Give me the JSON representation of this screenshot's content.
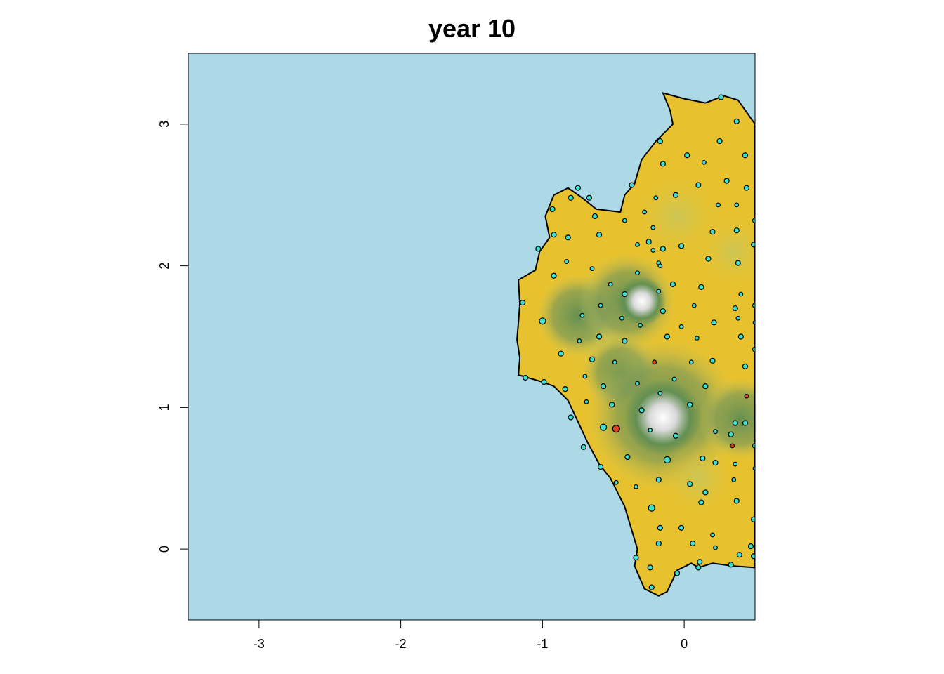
{
  "title": "year 10",
  "colors": {
    "sea": "#add8e6",
    "lowland": "#e8c22e",
    "midland": "#c9c65a",
    "forest": "#5f8e52",
    "peak": "#d9d9d9",
    "summit": "#ffffff",
    "point_fill": "#40e0d0",
    "point_fill_alt": "#e04020",
    "outline": "#000000"
  },
  "chart_data": {
    "type": "scatter",
    "title": "year 10",
    "xlabel": "",
    "ylabel": "",
    "xlim": [
      -3.5,
      0.5
    ],
    "ylim": [
      -0.5,
      3.5
    ],
    "x_ticks": [
      -3,
      -2,
      -1,
      0
    ],
    "y_ticks": [
      0,
      1,
      2,
      3
    ],
    "x_tick_labels": [
      "-3",
      "-2",
      "-1",
      "0"
    ],
    "y_tick_labels": [
      "0",
      "1",
      "2",
      "3"
    ],
    "island_outline": [
      [
        -0.15,
        3.22
      ],
      [
        0.0,
        3.18
      ],
      [
        0.15,
        3.15
      ],
      [
        0.28,
        3.2
      ],
      [
        0.38,
        3.17
      ],
      [
        0.5,
        3.0
      ],
      [
        0.5,
        -0.13
      ],
      [
        0.35,
        -0.12
      ],
      [
        0.2,
        -0.1
      ],
      [
        0.1,
        -0.13
      ],
      [
        0.05,
        -0.1
      ],
      [
        -0.05,
        -0.15
      ],
      [
        -0.12,
        -0.3
      ],
      [
        -0.18,
        -0.33
      ],
      [
        -0.28,
        -0.28
      ],
      [
        -0.35,
        -0.12
      ],
      [
        -0.33,
        0.0
      ],
      [
        -0.42,
        0.3
      ],
      [
        -0.52,
        0.5
      ],
      [
        -0.6,
        0.6
      ],
      [
        -0.68,
        0.75
      ],
      [
        -0.75,
        0.9
      ],
      [
        -0.82,
        1.05
      ],
      [
        -0.92,
        1.15
      ],
      [
        -1.0,
        1.18
      ],
      [
        -1.17,
        1.23
      ],
      [
        -1.16,
        1.35
      ],
      [
        -1.18,
        1.48
      ],
      [
        -1.17,
        1.6
      ],
      [
        -1.16,
        1.73
      ],
      [
        -1.17,
        1.9
      ],
      [
        -1.05,
        1.97
      ],
      [
        -1.02,
        2.1
      ],
      [
        -0.95,
        2.2
      ],
      [
        -0.98,
        2.35
      ],
      [
        -0.92,
        2.5
      ],
      [
        -0.82,
        2.55
      ],
      [
        -0.72,
        2.48
      ],
      [
        -0.62,
        2.4
      ],
      [
        -0.45,
        2.38
      ],
      [
        -0.42,
        2.5
      ],
      [
        -0.35,
        2.58
      ],
      [
        -0.3,
        2.75
      ],
      [
        -0.2,
        2.88
      ],
      [
        -0.08,
        3.0
      ],
      [
        -0.1,
        3.1
      ]
    ],
    "points": [
      {
        "x": 0.26,
        "y": 3.19,
        "size": 3.5,
        "color": "cyan"
      },
      {
        "x": 0.37,
        "y": 3.02,
        "size": 3.5,
        "color": "cyan"
      },
      {
        "x": 0.25,
        "y": 2.88,
        "size": 3.5,
        "color": "cyan"
      },
      {
        "x": 0.43,
        "y": 2.78,
        "size": 3.5,
        "color": "cyan"
      },
      {
        "x": 0.14,
        "y": 2.73,
        "size": 2.8,
        "color": "cyan"
      },
      {
        "x": 0.02,
        "y": 2.78,
        "size": 3.5,
        "color": "cyan"
      },
      {
        "x": -0.17,
        "y": 2.88,
        "size": 3.5,
        "color": "cyan"
      },
      {
        "x": -0.15,
        "y": 2.72,
        "size": 3.5,
        "color": "cyan"
      },
      {
        "x": -0.37,
        "y": 2.57,
        "size": 3.5,
        "color": "cyan"
      },
      {
        "x": -0.06,
        "y": 2.5,
        "size": 3.5,
        "color": "cyan"
      },
      {
        "x": 0.1,
        "y": 2.57,
        "size": 3.5,
        "color": "cyan"
      },
      {
        "x": 0.3,
        "y": 2.6,
        "size": 3.5,
        "color": "cyan"
      },
      {
        "x": 0.44,
        "y": 2.55,
        "size": 3.5,
        "color": "cyan"
      },
      {
        "x": -0.2,
        "y": 2.48,
        "size": 2.8,
        "color": "cyan"
      },
      {
        "x": 0.24,
        "y": 2.43,
        "size": 2.8,
        "color": "cyan"
      },
      {
        "x": 0.37,
        "y": 2.43,
        "size": 2.8,
        "color": "cyan"
      },
      {
        "x": 0.5,
        "y": 2.32,
        "size": 3.5,
        "color": "cyan"
      },
      {
        "x": 0.37,
        "y": 2.25,
        "size": 3.5,
        "color": "cyan"
      },
      {
        "x": 0.2,
        "y": 2.24,
        "size": 3.5,
        "color": "cyan"
      },
      {
        "x": -0.28,
        "y": 2.38,
        "size": 2.8,
        "color": "cyan"
      },
      {
        "x": -0.22,
        "y": 2.27,
        "size": 2.8,
        "color": "cyan"
      },
      {
        "x": -0.42,
        "y": 2.32,
        "size": 2.8,
        "color": "cyan"
      },
      {
        "x": -0.15,
        "y": 2.12,
        "size": 3.5,
        "color": "cyan"
      },
      {
        "x": -0.02,
        "y": 2.14,
        "size": 3.5,
        "color": "cyan"
      },
      {
        "x": -0.22,
        "y": 2.11,
        "size": 2.8,
        "color": "cyan"
      },
      {
        "x": 0.49,
        "y": 2.15,
        "size": 3.5,
        "color": "cyan"
      },
      {
        "x": -0.18,
        "y": 2.02,
        "size": 2.8,
        "color": "cyan"
      },
      {
        "x": 0.17,
        "y": 2.05,
        "size": 3.5,
        "color": "cyan"
      },
      {
        "x": 0.38,
        "y": 2.02,
        "size": 3.5,
        "color": "cyan"
      },
      {
        "x": -0.17,
        "y": 2.0,
        "size": 2.8,
        "color": "cyan"
      },
      {
        "x": -0.67,
        "y": 2.48,
        "size": 3.5,
        "color": "cyan"
      },
      {
        "x": -0.8,
        "y": 2.48,
        "size": 3.5,
        "color": "cyan"
      },
      {
        "x": -0.75,
        "y": 2.55,
        "size": 3.5,
        "color": "cyan"
      },
      {
        "x": -0.93,
        "y": 2.4,
        "size": 3.5,
        "color": "cyan"
      },
      {
        "x": -0.63,
        "y": 2.35,
        "size": 3.5,
        "color": "cyan"
      },
      {
        "x": -0.92,
        "y": 2.22,
        "size": 3.5,
        "color": "cyan"
      },
      {
        "x": -1.03,
        "y": 2.12,
        "size": 3.5,
        "color": "cyan"
      },
      {
        "x": -0.6,
        "y": 2.22,
        "size": 3.5,
        "color": "cyan"
      },
      {
        "x": -0.82,
        "y": 2.2,
        "size": 3.5,
        "color": "cyan"
      },
      {
        "x": -0.25,
        "y": 2.17,
        "size": 3.5,
        "color": "cyan"
      },
      {
        "x": -0.33,
        "y": 2.15,
        "size": 2.8,
        "color": "cyan"
      },
      {
        "x": -0.83,
        "y": 2.03,
        "size": 2.8,
        "color": "cyan"
      },
      {
        "x": -0.65,
        "y": 1.98,
        "size": 2.8,
        "color": "cyan"
      },
      {
        "x": -0.92,
        "y": 1.93,
        "size": 3.5,
        "color": "cyan"
      },
      {
        "x": -0.33,
        "y": 1.95,
        "size": 2.8,
        "color": "cyan"
      },
      {
        "x": -0.52,
        "y": 1.87,
        "size": 2.8,
        "color": "cyan"
      },
      {
        "x": -0.08,
        "y": 1.87,
        "size": 3.5,
        "color": "cyan"
      },
      {
        "x": -0.18,
        "y": 1.82,
        "size": 2.8,
        "color": "cyan"
      },
      {
        "x": -0.42,
        "y": 1.8,
        "size": 3.5,
        "color": "cyan"
      },
      {
        "x": 0.12,
        "y": 1.85,
        "size": 3.5,
        "color": "cyan"
      },
      {
        "x": 0.4,
        "y": 1.8,
        "size": 2.8,
        "color": "cyan"
      },
      {
        "x": 0.07,
        "y": 1.72,
        "size": 2.8,
        "color": "cyan"
      },
      {
        "x": 0.36,
        "y": 1.7,
        "size": 3.5,
        "color": "cyan"
      },
      {
        "x": 0.5,
        "y": 1.72,
        "size": 3.5,
        "color": "cyan"
      },
      {
        "x": -1.14,
        "y": 1.74,
        "size": 3.5,
        "color": "cyan"
      },
      {
        "x": -0.59,
        "y": 1.72,
        "size": 2.8,
        "color": "cyan"
      },
      {
        "x": -0.72,
        "y": 1.65,
        "size": 2.8,
        "color": "cyan"
      },
      {
        "x": -0.15,
        "y": 1.68,
        "size": 3.5,
        "color": "cyan"
      },
      {
        "x": -0.44,
        "y": 1.63,
        "size": 2.8,
        "color": "cyan"
      },
      {
        "x": -1.0,
        "y": 1.61,
        "size": 4.5,
        "color": "cyan"
      },
      {
        "x": -0.31,
        "y": 1.58,
        "size": 2.8,
        "color": "cyan"
      },
      {
        "x": -0.02,
        "y": 1.57,
        "size": 2.8,
        "color": "cyan"
      },
      {
        "x": 0.21,
        "y": 1.6,
        "size": 3.5,
        "color": "cyan"
      },
      {
        "x": 0.38,
        "y": 1.63,
        "size": 2.8,
        "color": "cyan"
      },
      {
        "x": 0.5,
        "y": 1.6,
        "size": 2.8,
        "color": "cyan"
      },
      {
        "x": -0.6,
        "y": 1.5,
        "size": 3.5,
        "color": "cyan"
      },
      {
        "x": -0.74,
        "y": 1.47,
        "size": 2.8,
        "color": "cyan"
      },
      {
        "x": -0.42,
        "y": 1.47,
        "size": 3.5,
        "color": "cyan"
      },
      {
        "x": -0.12,
        "y": 1.5,
        "size": 3.5,
        "color": "cyan"
      },
      {
        "x": 0.09,
        "y": 1.49,
        "size": 2.8,
        "color": "cyan"
      },
      {
        "x": 0.4,
        "y": 1.5,
        "size": 3.5,
        "color": "cyan"
      },
      {
        "x": -0.87,
        "y": 1.38,
        "size": 3.5,
        "color": "cyan"
      },
      {
        "x": -0.65,
        "y": 1.34,
        "size": 3.5,
        "color": "cyan"
      },
      {
        "x": -0.49,
        "y": 1.32,
        "size": 2.8,
        "color": "cyan"
      },
      {
        "x": -0.21,
        "y": 1.32,
        "size": 2.8,
        "color": "red"
      },
      {
        "x": 0.05,
        "y": 1.32,
        "size": 2.8,
        "color": "cyan"
      },
      {
        "x": 0.2,
        "y": 1.33,
        "size": 3.5,
        "color": "cyan"
      },
      {
        "x": 0.43,
        "y": 1.29,
        "size": 3.5,
        "color": "cyan"
      },
      {
        "x": 0.5,
        "y": 1.41,
        "size": 3.5,
        "color": "cyan"
      },
      {
        "x": -1.12,
        "y": 1.21,
        "size": 3.5,
        "color": "cyan"
      },
      {
        "x": -0.99,
        "y": 1.18,
        "size": 3.5,
        "color": "cyan"
      },
      {
        "x": -0.7,
        "y": 1.22,
        "size": 2.8,
        "color": "cyan"
      },
      {
        "x": -0.84,
        "y": 1.13,
        "size": 3.5,
        "color": "cyan"
      },
      {
        "x": -0.57,
        "y": 1.15,
        "size": 3.5,
        "color": "cyan"
      },
      {
        "x": -0.33,
        "y": 1.17,
        "size": 2.8,
        "color": "cyan"
      },
      {
        "x": -0.17,
        "y": 1.1,
        "size": 2.8,
        "color": "cyan"
      },
      {
        "x": -0.07,
        "y": 1.2,
        "size": 2.8,
        "color": "cyan"
      },
      {
        "x": 0.15,
        "y": 1.15,
        "size": 3.5,
        "color": "cyan"
      },
      {
        "x": 0.44,
        "y": 1.08,
        "size": 2.8,
        "color": "red"
      },
      {
        "x": -0.69,
        "y": 1.04,
        "size": 2.8,
        "color": "cyan"
      },
      {
        "x": -0.51,
        "y": 1.02,
        "size": 3.5,
        "color": "cyan"
      },
      {
        "x": -0.3,
        "y": 0.98,
        "size": 3.5,
        "color": "cyan"
      },
      {
        "x": 0.04,
        "y": 1.02,
        "size": 3.5,
        "color": "cyan"
      },
      {
        "x": -0.8,
        "y": 0.93,
        "size": 3.5,
        "color": "cyan"
      },
      {
        "x": -0.48,
        "y": 0.85,
        "size": 5.0,
        "color": "red"
      },
      {
        "x": -0.57,
        "y": 0.86,
        "size": 4.5,
        "color": "cyan"
      },
      {
        "x": -0.24,
        "y": 0.84,
        "size": 2.8,
        "color": "cyan"
      },
      {
        "x": -0.06,
        "y": 0.8,
        "size": 3.5,
        "color": "cyan"
      },
      {
        "x": 0.22,
        "y": 0.83,
        "size": 2.8,
        "color": "cyan"
      },
      {
        "x": 0.36,
        "y": 0.89,
        "size": 3.5,
        "color": "cyan"
      },
      {
        "x": 0.43,
        "y": 0.89,
        "size": 3.5,
        "color": "cyan"
      },
      {
        "x": 0.33,
        "y": 0.81,
        "size": 3.5,
        "color": "cyan"
      },
      {
        "x": 0.34,
        "y": 0.73,
        "size": 2.8,
        "color": "red"
      },
      {
        "x": 0.5,
        "y": 0.73,
        "size": 3.5,
        "color": "cyan"
      },
      {
        "x": -0.71,
        "y": 0.72,
        "size": 3.5,
        "color": "cyan"
      },
      {
        "x": -0.4,
        "y": 0.65,
        "size": 3.5,
        "color": "cyan"
      },
      {
        "x": -0.12,
        "y": 0.63,
        "size": 4.5,
        "color": "cyan"
      },
      {
        "x": 0.13,
        "y": 0.64,
        "size": 3.5,
        "color": "cyan"
      },
      {
        "x": 0.22,
        "y": 0.61,
        "size": 3.5,
        "color": "cyan"
      },
      {
        "x": -0.59,
        "y": 0.58,
        "size": 3.5,
        "color": "cyan"
      },
      {
        "x": 0.36,
        "y": 0.6,
        "size": 2.8,
        "color": "cyan"
      },
      {
        "x": 0.5,
        "y": 0.57,
        "size": 2.8,
        "color": "cyan"
      },
      {
        "x": -0.48,
        "y": 0.47,
        "size": 2.8,
        "color": "cyan"
      },
      {
        "x": -0.18,
        "y": 0.49,
        "size": 3.5,
        "color": "cyan"
      },
      {
        "x": 0.04,
        "y": 0.46,
        "size": 3.5,
        "color": "cyan"
      },
      {
        "x": 0.35,
        "y": 0.49,
        "size": 2.8,
        "color": "cyan"
      },
      {
        "x": -0.34,
        "y": 0.44,
        "size": 2.8,
        "color": "cyan"
      },
      {
        "x": 0.15,
        "y": 0.4,
        "size": 3.5,
        "color": "cyan"
      },
      {
        "x": -0.23,
        "y": 0.29,
        "size": 4.5,
        "color": "cyan"
      },
      {
        "x": 0.12,
        "y": 0.33,
        "size": 3.5,
        "color": "cyan"
      },
      {
        "x": 0.37,
        "y": 0.34,
        "size": 3.5,
        "color": "cyan"
      },
      {
        "x": 0.49,
        "y": 0.21,
        "size": 3.5,
        "color": "cyan"
      },
      {
        "x": -0.17,
        "y": 0.15,
        "size": 3.5,
        "color": "cyan"
      },
      {
        "x": -0.02,
        "y": 0.15,
        "size": 3.5,
        "color": "cyan"
      },
      {
        "x": 0.2,
        "y": 0.1,
        "size": 2.8,
        "color": "cyan"
      },
      {
        "x": 0.22,
        "y": 0.01,
        "size": 2.8,
        "color": "cyan"
      },
      {
        "x": -0.18,
        "y": 0.04,
        "size": 3.5,
        "color": "cyan"
      },
      {
        "x": 0.06,
        "y": 0.04,
        "size": 3.5,
        "color": "cyan"
      },
      {
        "x": 0.47,
        "y": 0.02,
        "size": 3.5,
        "color": "cyan"
      },
      {
        "x": 0.39,
        "y": -0.04,
        "size": 3.5,
        "color": "cyan"
      },
      {
        "x": -0.34,
        "y": -0.06,
        "size": 3.5,
        "color": "cyan"
      },
      {
        "x": 0.11,
        "y": -0.09,
        "size": 3.5,
        "color": "cyan"
      },
      {
        "x": 0.1,
        "y": -0.13,
        "size": 3.5,
        "color": "cyan"
      },
      {
        "x": -0.24,
        "y": -0.13,
        "size": 3.5,
        "color": "cyan"
      },
      {
        "x": -0.05,
        "y": -0.17,
        "size": 3.5,
        "color": "cyan"
      },
      {
        "x": 0.33,
        "y": -0.11,
        "size": 3.5,
        "color": "cyan"
      },
      {
        "x": -0.23,
        "y": -0.27,
        "size": 3.5,
        "color": "cyan"
      },
      {
        "x": 0.49,
        "y": -0.05,
        "size": 3.5,
        "color": "cyan"
      }
    ]
  }
}
